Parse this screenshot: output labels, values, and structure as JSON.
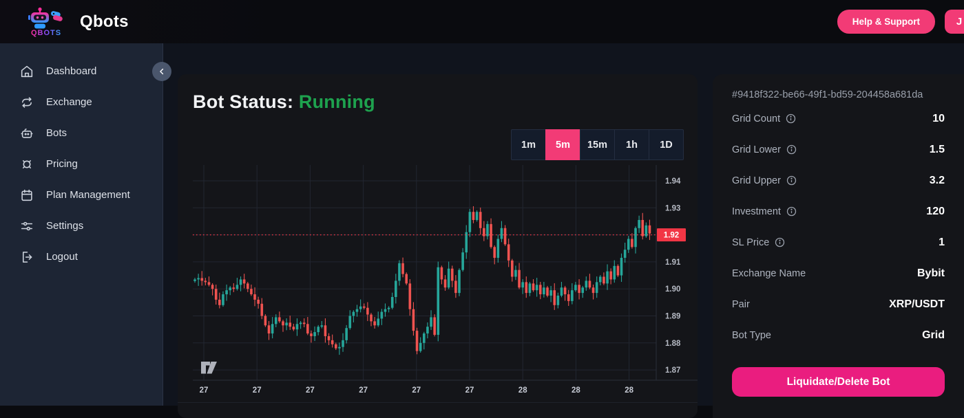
{
  "colors": {
    "accent_pink": "#f23b76",
    "magenta": "#ea1d7f",
    "status_green": "#1ea24e",
    "candle_up": "#26a69a",
    "candle_down": "#ef5350",
    "price_line_red": "#f23645"
  },
  "navbar": {
    "brand": "Qbots",
    "logo_text": "QBOTS",
    "help_button": "Help & Support",
    "avatar_initial": "J"
  },
  "sidebar": {
    "items": [
      {
        "label": "Dashboard",
        "icon": "home-icon"
      },
      {
        "label": "Exchange",
        "icon": "exchange-icon"
      },
      {
        "label": "Bots",
        "icon": "robot-icon"
      },
      {
        "label": "Pricing",
        "icon": "pricing-icon"
      },
      {
        "label": "Plan Management",
        "icon": "calendar-icon"
      },
      {
        "label": "Settings",
        "icon": "sliders-icon"
      },
      {
        "label": "Logout",
        "icon": "logout-icon"
      }
    ]
  },
  "main": {
    "bot_status_label": "Bot Status:",
    "bot_status_value": "Running",
    "timeframes": [
      "1m",
      "5m",
      "15m",
      "1h",
      "1D"
    ],
    "active_timeframe": "5m"
  },
  "chart_data": {
    "type": "candlestick",
    "source": "TradingView widget",
    "timeframe": "5m",
    "x_labels": [
      "27",
      "27",
      "27",
      "27",
      "27",
      "27",
      "28",
      "28",
      "28"
    ],
    "y_ticks": [
      "1.94",
      "1.93",
      "1.92",
      "1.91",
      "1.90",
      "1.89",
      "1.88",
      "1.87"
    ],
    "y_range": [
      1.865,
      1.945
    ],
    "last_price": 1.92,
    "last_price_label": "1.92",
    "grid": true,
    "closes": [
      1.9035,
      1.904,
      1.903,
      1.9025,
      1.9015,
      1.9,
      1.896,
      1.894,
      1.898,
      1.8995,
      1.9005,
      1.9,
      1.9015,
      1.9035,
      1.902,
      1.9,
      1.898,
      1.896,
      1.8945,
      1.89,
      1.8865,
      1.8835,
      1.887,
      1.8895,
      1.888,
      1.8865,
      1.8875,
      1.886,
      1.885,
      1.887,
      1.8875,
      1.887,
      1.8835,
      1.8825,
      1.884,
      1.886,
      1.8865,
      1.8825,
      1.881,
      1.8795,
      1.878,
      1.8785,
      1.881,
      1.8855,
      1.89,
      1.8915,
      1.8925,
      1.8935,
      1.893,
      1.8905,
      1.888,
      1.8865,
      1.889,
      1.8915,
      1.8925,
      1.893,
      1.897,
      1.903,
      1.9095,
      1.9055,
      1.902,
      1.8925,
      1.8845,
      1.877,
      1.88,
      1.8835,
      1.886,
      1.8895,
      1.883,
      1.908,
      1.9035,
      1.9005,
      1.9075,
      1.903,
      1.8985,
      1.907,
      1.9135,
      1.921,
      1.9285,
      1.9255,
      1.9285,
      1.9225,
      1.9195,
      1.924,
      1.9155,
      1.9115,
      1.9185,
      1.9225,
      1.9165,
      1.9105,
      1.9045,
      1.907,
      1.9005,
      1.9025,
      1.8985,
      1.902,
      1.8995,
      1.9015,
      1.898,
      1.9005,
      1.8975,
      1.8995,
      1.894,
      1.8975,
      1.9005,
      1.898,
      1.8955,
      1.8995,
      1.9015,
      1.8985,
      1.9005,
      1.903,
      1.9005,
      1.8985,
      1.9025,
      1.9045,
      1.902,
      1.9065,
      1.9035,
      1.9085,
      1.905,
      1.9115,
      1.9145,
      1.9185,
      1.9155,
      1.9225,
      1.9255,
      1.9195,
      1.9235,
      1.9205
    ]
  },
  "panel": {
    "bot_id": "#9418f322-be66-49f1-bd59-204458a681da",
    "rows": [
      {
        "label": "Grid Count",
        "info": true,
        "value": "10"
      },
      {
        "label": "Grid Lower",
        "info": true,
        "value": "1.5"
      },
      {
        "label": "Grid Upper",
        "info": true,
        "value": "3.2"
      },
      {
        "label": "Investment",
        "info": true,
        "value": "120"
      },
      {
        "label": "SL Price",
        "info": true,
        "value": "1"
      },
      {
        "label": "Exchange Name",
        "info": false,
        "value": "Bybit"
      },
      {
        "label": "Pair",
        "info": false,
        "value": "XRP/USDT"
      },
      {
        "label": "Bot Type",
        "info": false,
        "value": "Grid"
      }
    ],
    "delete_button": "Liquidate/Delete Bot"
  }
}
